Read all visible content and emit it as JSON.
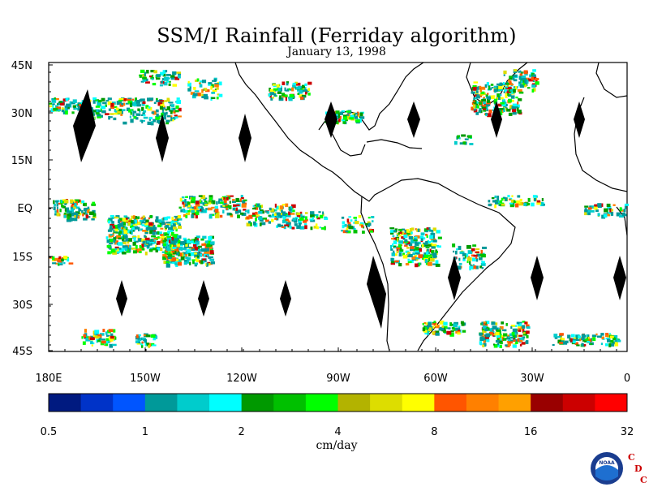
{
  "title": "SSM/I Rainfall (Ferriday algorithm)",
  "date": "January 13, 1998",
  "map": {
    "lat_labels": [
      "45N",
      "30N",
      "15N",
      "EQ",
      "15S",
      "30S",
      "45S"
    ],
    "lon_labels": [
      "180E",
      "150W",
      "120W",
      "90W",
      "60W",
      "30W",
      "0"
    ],
    "lon_range": [
      -180,
      0
    ],
    "lat_range": [
      -45,
      45
    ]
  },
  "colorbar": {
    "labels": [
      "0.5",
      "1",
      "2",
      "4",
      "8",
      "16",
      "32"
    ],
    "units": "cm/day",
    "colors": [
      "#001a80",
      "#0033c8",
      "#0055ff",
      "#009999",
      "#00cccc",
      "#00ffff",
      "#009900",
      "#00c000",
      "#00ff00",
      "#b3b300",
      "#dddd00",
      "#ffff00",
      "#ff5500",
      "#ff8000",
      "#ffa000",
      "#990000",
      "#cc0000",
      "#ff0000"
    ]
  },
  "logo": {
    "noaa": "NOAA",
    "cdc_letters": [
      "C",
      "D",
      "C"
    ]
  }
}
